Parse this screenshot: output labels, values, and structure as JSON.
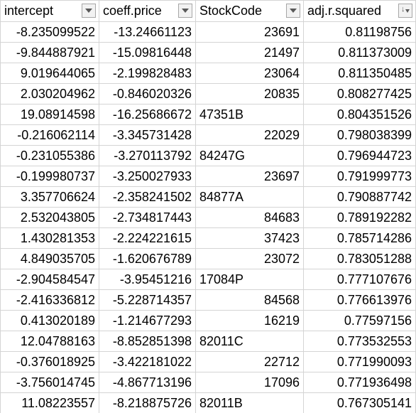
{
  "columns": [
    {
      "label": "intercept",
      "sorted": false
    },
    {
      "label": "coeff.price",
      "sorted": false
    },
    {
      "label": "StockCode",
      "sorted": false
    },
    {
      "label": "adj.r.squared",
      "sorted": true
    }
  ],
  "sort_glyph": "↓",
  "rows": [
    [
      "-8.235099522",
      "-13.24661123",
      "23691",
      "0.81198756"
    ],
    [
      "-9.844887921",
      "-15.09816448",
      "21497",
      "0.811373009"
    ],
    [
      "9.019644065",
      "-2.199828483",
      "23064",
      "0.811350485"
    ],
    [
      "2.030204962",
      "-0.846020326",
      "20835",
      "0.808277425"
    ],
    [
      "19.08914598",
      "-16.25686672",
      "47351B",
      "0.804351526"
    ],
    [
      "-0.216062114",
      "-3.345731428",
      "22029",
      "0.798038399"
    ],
    [
      "-0.231055386",
      "-3.270113792",
      "84247G",
      "0.796944723"
    ],
    [
      "-0.199980737",
      "-3.250027933",
      "23697",
      "0.791999773"
    ],
    [
      "3.357706624",
      "-2.358241502",
      "84877A",
      "0.790887742"
    ],
    [
      "2.532043805",
      "-2.734817443",
      "84683",
      "0.789192282"
    ],
    [
      "1.430281353",
      "-2.224221615",
      "37423",
      "0.785714286"
    ],
    [
      "4.849035705",
      "-1.620676789",
      "23072",
      "0.783051288"
    ],
    [
      "-2.904584547",
      "-3.95451216",
      "17084P",
      "0.777107676"
    ],
    [
      "-2.416336812",
      "-5.228714357",
      "84568",
      "0.776613976"
    ],
    [
      "0.413020189",
      "-1.214677293",
      "16219",
      "0.77597156"
    ],
    [
      "12.04788163",
      "-8.852851398",
      "82011C",
      "0.773532553"
    ],
    [
      "-0.376018925",
      "-3.422181022",
      "22712",
      "0.771990093"
    ],
    [
      "-3.756014745",
      "-4.867713196",
      "17096",
      "0.771936498"
    ],
    [
      "11.08223557",
      "-8.218875726",
      "82011B",
      "0.767305141"
    ]
  ]
}
